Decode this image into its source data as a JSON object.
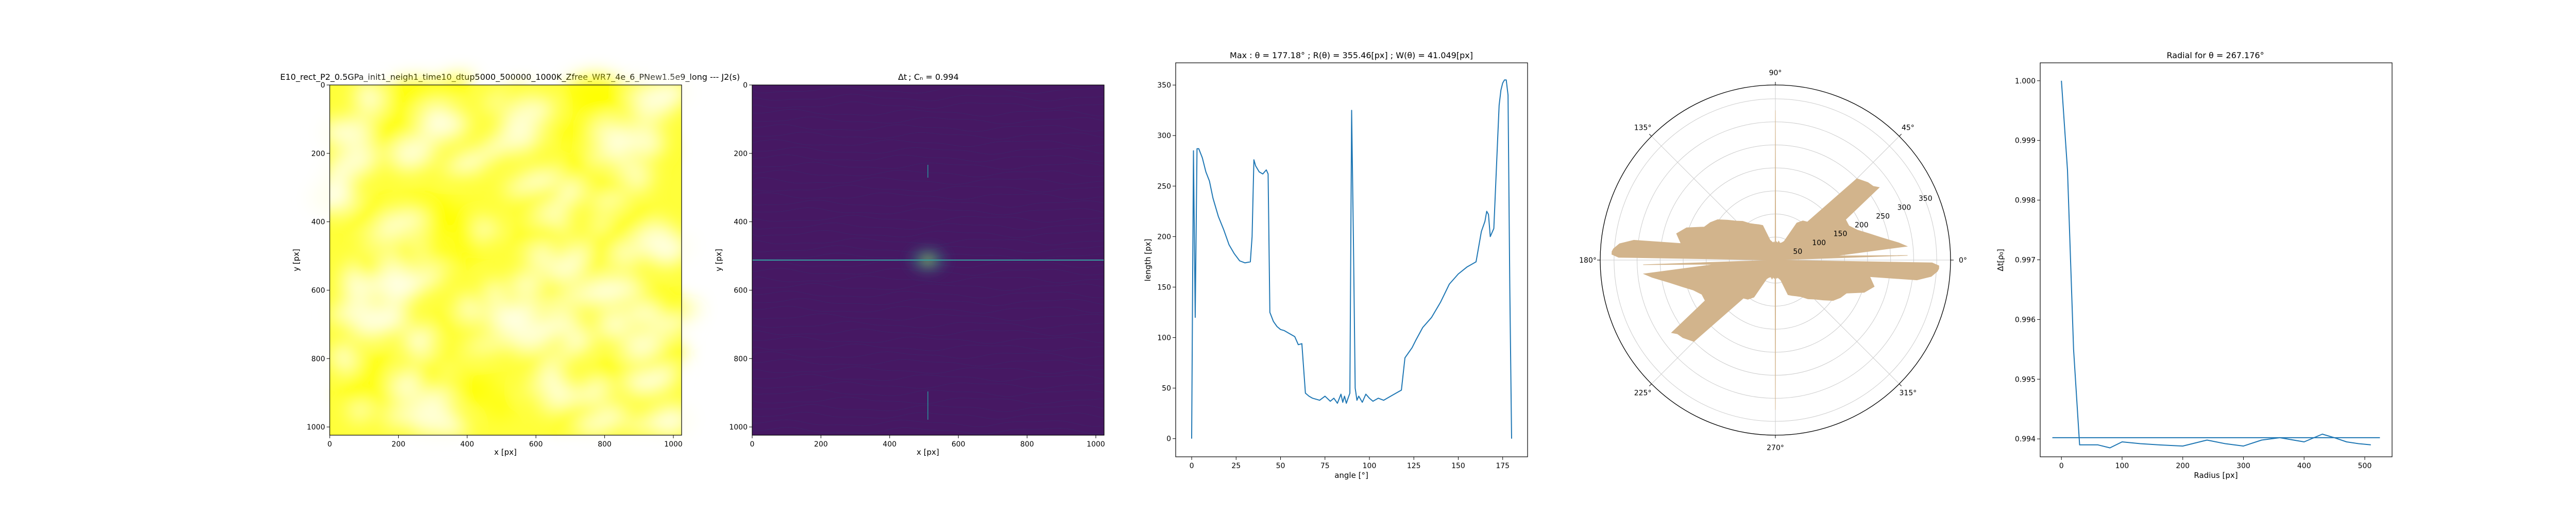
{
  "chart_data": [
    {
      "type": "heatmap",
      "title": "E10_rect_P2_0.5GPa_init1_neigh1_time10_dtup5000_500000_1000K_Zfree_WR7_4e_6_PNew1.5e9_long --- J2(s)",
      "xlabel": "x [px]",
      "ylabel": "y [px]",
      "xlim": [
        0,
        1024
      ],
      "ylim": [
        1024,
        0
      ],
      "xticks": [
        "0",
        "200",
        "400",
        "600",
        "800",
        "1000"
      ],
      "yticks": [
        "0",
        "200",
        "400",
        "600",
        "800",
        "1000"
      ],
      "colormap": "yellow-white",
      "colors": [
        "#ffff00",
        "#ffffe8"
      ]
    },
    {
      "type": "heatmap",
      "title": "Δt ; Cₙ = 0.994",
      "xlabel": "x [px]",
      "ylabel": "y [px]",
      "xlim": [
        0,
        1024
      ],
      "ylim": [
        1024,
        0
      ],
      "xticks": [
        "0",
        "200",
        "400",
        "600",
        "800",
        "1000"
      ],
      "yticks": [
        "0",
        "200",
        "400",
        "600",
        "800",
        "1000"
      ],
      "colormap": "viridis",
      "colors": [
        "#440154",
        "#31688e",
        "#35b779",
        "#fde725"
      ],
      "center": [
        512,
        512
      ]
    },
    {
      "type": "line",
      "title": "Max : θ = 177.18° ; R(θ) = 355.46[px] ; W(θ) = 41.049[px]",
      "xlabel": "angle [°]",
      "ylabel": "length [px]",
      "xlim": [
        -9,
        189
      ],
      "ylim": [
        -18,
        372
      ],
      "xticks": [
        "0",
        "25",
        "50",
        "75",
        "100",
        "125",
        "150",
        "175"
      ],
      "xtick_values": [
        0,
        25,
        50,
        75,
        100,
        125,
        150,
        175
      ],
      "yticks": [
        "0",
        "50",
        "100",
        "150",
        "200",
        "250",
        "300",
        "350"
      ],
      "ytick_values": [
        0,
        50,
        100,
        150,
        200,
        250,
        300,
        350
      ],
      "color": "#1f77b4",
      "x": [
        0,
        1,
        2,
        3,
        4,
        6,
        8,
        10,
        12,
        15,
        18,
        21,
        24,
        27,
        30,
        33,
        34,
        35,
        36,
        38,
        40,
        42,
        43,
        44,
        46,
        48,
        50,
        52,
        55,
        58,
        60,
        62,
        64,
        66,
        68,
        70,
        72,
        75,
        78,
        80,
        82,
        84,
        85,
        86,
        87,
        88,
        89,
        90,
        91,
        92,
        93,
        94,
        96,
        98,
        100,
        102,
        105,
        108,
        110,
        112,
        115,
        118,
        120,
        122,
        124,
        126,
        130,
        135,
        140,
        145,
        150,
        155,
        160,
        163,
        165,
        166,
        167,
        168,
        170,
        172,
        173,
        174,
        175,
        176,
        177,
        178,
        179,
        180
      ],
      "y": [
        0,
        285,
        120,
        287,
        287,
        278,
        264,
        255,
        238,
        220,
        207,
        192,
        183,
        176,
        174,
        175,
        200,
        276,
        270,
        264,
        262,
        266,
        262,
        125,
        116,
        111,
        108,
        107,
        104,
        101,
        93,
        94,
        45,
        42,
        40,
        39,
        38,
        42,
        37,
        40,
        35,
        44,
        36,
        42,
        35,
        40,
        45,
        325,
        200,
        50,
        38,
        42,
        36,
        44,
        40,
        37,
        40,
        38,
        40,
        42,
        45,
        48,
        80,
        85,
        90,
        97,
        110,
        120,
        135,
        153,
        163,
        170,
        175,
        205,
        215,
        225,
        222,
        200,
        208,
        290,
        330,
        345,
        352,
        355,
        355,
        340,
        150,
        0
      ]
    },
    {
      "type": "area",
      "subtype": "polar",
      "angle_ticks": [
        "0°",
        "45°",
        "90°",
        "135°",
        "180°",
        "225°",
        "270°",
        "315°"
      ],
      "radial_ticks": [
        "50",
        "100",
        "150",
        "200",
        "250",
        "300",
        "350"
      ],
      "radial_tick_values": [
        50,
        100,
        150,
        200,
        250,
        300,
        350
      ],
      "rmax": 380,
      "fill_color": "#d2b48c",
      "theta": [
        0,
        2,
        4,
        6,
        8,
        12,
        16,
        20,
        25,
        30,
        35,
        37,
        40,
        45,
        50,
        55,
        60,
        65,
        70,
        75,
        80,
        83,
        86,
        88,
        89,
        90,
        91,
        92,
        94,
        97,
        100,
        105,
        110,
        115,
        120,
        125,
        130,
        135,
        140,
        145,
        150,
        155,
        160,
        165,
        170,
        172,
        174,
        176,
        177,
        178,
        179,
        180
      ],
      "r": [
        0,
        287,
        130,
        287,
        270,
        235,
        210,
        190,
        176,
        176,
        275,
        266,
        262,
        250,
        108,
        104,
        93,
        45,
        40,
        38,
        42,
        37,
        40,
        38,
        42,
        325,
        40,
        36,
        40,
        38,
        40,
        45,
        80,
        85,
        90,
        97,
        110,
        120,
        135,
        153,
        163,
        170,
        205,
        222,
        208,
        310,
        340,
        352,
        355,
        355,
        340,
        0
      ]
    },
    {
      "type": "line",
      "title": "Radial for θ = 267.176°",
      "xlabel": "Radius [px]",
      "ylabel": "Δt[ρ₀]",
      "xlim": [
        -35,
        545
      ],
      "ylim": [
        0.9937,
        1.0003
      ],
      "xticks": [
        "0",
        "100",
        "200",
        "300",
        "400",
        "500"
      ],
      "xtick_values": [
        0,
        100,
        200,
        300,
        400,
        500
      ],
      "yticks": [
        "0.994",
        "0.995",
        "0.996",
        "0.997",
        "0.998",
        "0.999",
        "1.000"
      ],
      "ytick_values": [
        0.994,
        0.995,
        0.996,
        0.997,
        0.998,
        0.999,
        1.0
      ],
      "color": "#1f77b4",
      "series": [
        {
          "x": [
            0,
            10,
            20,
            30,
            40,
            60,
            80,
            100,
            130,
            160,
            200,
            240,
            270,
            300,
            330,
            360,
            400,
            430,
            450,
            470,
            490,
            510
          ],
          "y": [
            1.0,
            0.9985,
            0.9955,
            0.9939,
            0.9939,
            0.9939,
            0.99385,
            0.99395,
            0.99392,
            0.9939,
            0.99388,
            0.99398,
            0.99392,
            0.99388,
            0.99398,
            0.99402,
            0.99395,
            0.99408,
            0.99402,
            0.99395,
            0.99392,
            0.9939
          ]
        },
        {
          "x": [
            -15,
            525
          ],
          "y": [
            0.99402,
            0.99402
          ]
        }
      ]
    }
  ]
}
